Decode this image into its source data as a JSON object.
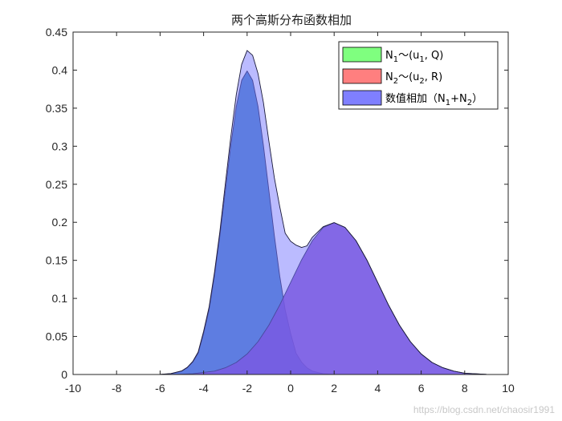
{
  "chart_data": {
    "type": "area",
    "title": "两个高斯分布函数相加",
    "xlim": [
      -10,
      10
    ],
    "ylim": [
      0,
      0.45
    ],
    "x_ticks": [
      "-10",
      "-8",
      "-6",
      "-4",
      "-2",
      "0",
      "2",
      "4",
      "6",
      "8",
      "10"
    ],
    "y_ticks": [
      "0",
      "0.05",
      "0.1",
      "0.15",
      "0.2",
      "0.25",
      "0.3",
      "0.35",
      "0.4",
      "0.45"
    ],
    "grid": false,
    "legend_position": "top-right",
    "series": [
      {
        "name": "N1～(u1, Q)",
        "legend_main": "N",
        "legend_sub": "1",
        "legend_rest": "～(u",
        "legend_sub2": "1",
        "legend_end": ", Q)",
        "color": "#00ff00",
        "display_fill": "#3a7bbf",
        "x": [
          -10,
          -9.5,
          -9,
          -8.5,
          -8,
          -7.5,
          -7,
          -6.5,
          -6,
          -5.5,
          -5,
          -4.75,
          -4.5,
          -4.25,
          -4,
          -3.75,
          -3.5,
          -3.25,
          -3,
          -2.75,
          -2.5,
          -2.25,
          -2,
          -1.75,
          -1.5,
          -1.25,
          -1,
          -0.75,
          -0.5,
          -0.25,
          0,
          0.25,
          0.5,
          0.75,
          1,
          1.5,
          2,
          2.5,
          3,
          3.5,
          4,
          5,
          6,
          7,
          8,
          9,
          10
        ],
        "y": [
          0,
          0,
          0,
          0,
          0,
          0,
          0,
          0,
          0.0001,
          0.0009,
          0.0044,
          0.0088,
          0.0163,
          0.0279,
          0.054,
          0.085,
          0.1295,
          0.1826,
          0.242,
          0.3011,
          0.3521,
          0.3867,
          0.3989,
          0.3867,
          0.3521,
          0.3011,
          0.242,
          0.1826,
          0.1295,
          0.085,
          0.054,
          0.0279,
          0.0163,
          0.0088,
          0.0044,
          0.0009,
          0.0001,
          0,
          0,
          0,
          0,
          0,
          0,
          0,
          0,
          0,
          0
        ]
      },
      {
        "name": "N2～(u2, R)",
        "legend_main": "N",
        "legend_sub": "2",
        "legend_rest": "～(u",
        "legend_sub2": "2",
        "legend_end": ", R)",
        "color": "#ff0000",
        "display_fill": "#7a3cc4",
        "x": [
          -10,
          -9,
          -8,
          -7,
          -6,
          -5,
          -4.5,
          -4,
          -3.5,
          -3,
          -2.5,
          -2,
          -1.5,
          -1,
          -0.5,
          0,
          0.5,
          1,
          1.5,
          2,
          2.5,
          3,
          3.5,
          4,
          4.5,
          5,
          5.5,
          6,
          6.5,
          7,
          7.5,
          8,
          9,
          10
        ],
        "y": [
          0,
          0,
          0,
          0,
          0,
          0.0004,
          0.0009,
          0.0027,
          0.0044,
          0.0088,
          0.0158,
          0.027,
          0.0432,
          0.0648,
          0.0913,
          0.121,
          0.1506,
          0.176,
          0.1933,
          0.1995,
          0.1933,
          0.176,
          0.1506,
          0.121,
          0.0913,
          0.0648,
          0.0432,
          0.027,
          0.0158,
          0.0088,
          0.0044,
          0.0017,
          0.0002,
          0
        ]
      },
      {
        "name": "数值相加（N1+N2）",
        "legend_main": "数值相加（N",
        "legend_sub": "1",
        "legend_rest": "+N",
        "legend_sub2": "2",
        "legend_end": "）",
        "color": "#0000ff",
        "display_fill": "#7777ff",
        "x": [
          -10,
          -9,
          -8,
          -7,
          -6,
          -5.5,
          -5,
          -4.75,
          -4.5,
          -4.25,
          -4,
          -3.75,
          -3.5,
          -3.25,
          -3,
          -2.75,
          -2.5,
          -2.25,
          -2,
          -1.75,
          -1.5,
          -1.25,
          -1,
          -0.75,
          -0.5,
          -0.25,
          0,
          0.25,
          0.5,
          0.75,
          1,
          1.5,
          2,
          2.5,
          3,
          3.5,
          4,
          4.5,
          5,
          5.5,
          6,
          6.5,
          7,
          7.5,
          8,
          9,
          10
        ],
        "y": [
          0,
          0,
          0,
          0,
          0.0002,
          0.0013,
          0.0048,
          0.0095,
          0.0172,
          0.0295,
          0.0567,
          0.0885,
          0.1339,
          0.1882,
          0.2508,
          0.3125,
          0.3679,
          0.4075,
          0.4259,
          0.4195,
          0.3953,
          0.3575,
          0.3068,
          0.2586,
          0.2208,
          0.1858,
          0.175,
          0.17,
          0.1669,
          0.169,
          0.1804,
          0.1942,
          0.1996,
          0.1933,
          0.176,
          0.1506,
          0.121,
          0.0913,
          0.0648,
          0.0432,
          0.027,
          0.0158,
          0.0088,
          0.0044,
          0.0017,
          0.0002,
          0
        ]
      }
    ],
    "watermark": "https://blog.csdn.net/chaosir1991"
  }
}
